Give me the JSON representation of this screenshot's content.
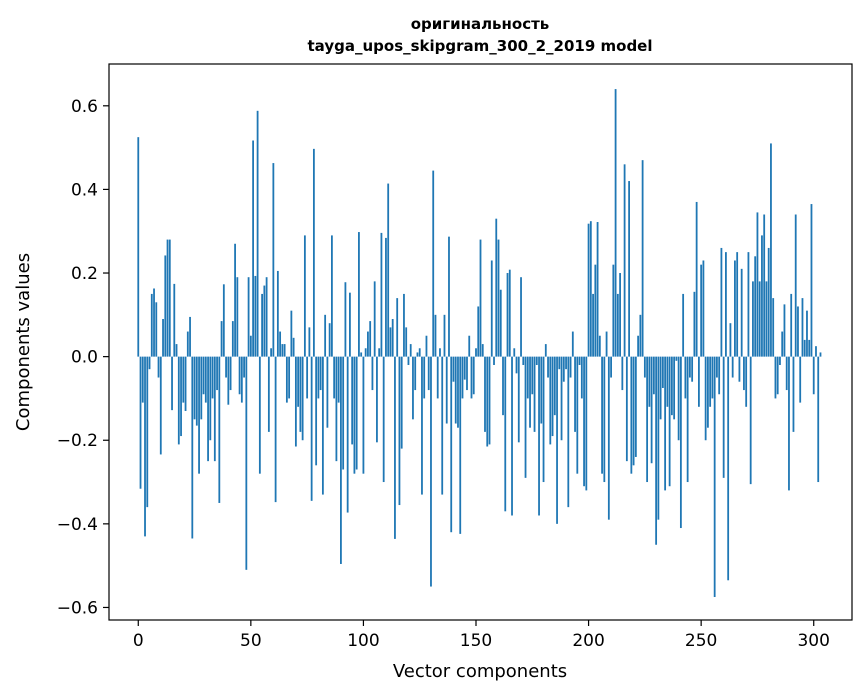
{
  "chart_data": {
    "type": "bar",
    "title": "оригинальность",
    "subtitle": "tayga_upos_skipgram_300_2_2019 model",
    "xlabel": "Vector components",
    "ylabel": "Components values",
    "xlim": [
      -13,
      317
    ],
    "ylim": [
      -0.63,
      0.7
    ],
    "xticks": [
      0,
      50,
      100,
      150,
      200,
      250,
      300
    ],
    "xtick_labels": [
      "0",
      "50",
      "100",
      "150",
      "200",
      "250",
      "300"
    ],
    "yticks": [
      -0.6,
      -0.4,
      -0.2,
      0.0,
      0.2,
      0.4,
      0.6
    ],
    "ytick_labels": [
      "−0.6",
      "−0.4",
      "−0.2",
      "0.0",
      "0.2",
      "0.4",
      "0.6"
    ],
    "bar_color": "#1f77b4",
    "grid": false,
    "values": [
      0.525,
      -0.316,
      -0.11,
      -0.43,
      -0.36,
      -0.03,
      0.15,
      0.163,
      0.13,
      -0.05,
      -0.234,
      0.09,
      0.242,
      0.28,
      0.28,
      -0.128,
      0.174,
      0.03,
      -0.21,
      -0.19,
      -0.11,
      -0.13,
      0.06,
      0.095,
      -0.435,
      -0.15,
      -0.165,
      -0.28,
      -0.15,
      -0.09,
      -0.11,
      -0.25,
      -0.2,
      -0.1,
      -0.25,
      -0.08,
      -0.35,
      0.085,
      0.173,
      -0.05,
      -0.115,
      -0.08,
      0.085,
      0.27,
      0.19,
      -0.09,
      -0.11,
      -0.05,
      -0.51,
      0.19,
      0.05,
      0.517,
      0.193,
      0.588,
      -0.28,
      0.15,
      0.17,
      0.19,
      -0.18,
      0.02,
      0.463,
      -0.348,
      0.205,
      0.06,
      0.03,
      0.03,
      -0.11,
      -0.1,
      0.11,
      0.045,
      -0.215,
      -0.12,
      -0.18,
      -0.2,
      0.29,
      -0.1,
      0.07,
      -0.345,
      0.497,
      -0.26,
      -0.1,
      -0.08,
      -0.33,
      0.1,
      -0.17,
      0.08,
      0.29,
      -0.1,
      -0.25,
      -0.11,
      -0.496,
      -0.27,
      0.178,
      -0.373,
      0.153,
      -0.21,
      -0.28,
      -0.27,
      0.298,
      0.01,
      -0.28,
      0.02,
      0.06,
      0.085,
      -0.08,
      0.18,
      -0.205,
      0.02,
      0.296,
      -0.3,
      0.284,
      0.414,
      0.07,
      0.09,
      -0.436,
      0.14,
      -0.355,
      -0.22,
      0.15,
      0.07,
      -0.02,
      0.03,
      -0.15,
      -0.08,
      0.01,
      0.02,
      -0.33,
      -0.1,
      0.05,
      -0.08,
      -0.55,
      0.445,
      0.1,
      -0.1,
      0.02,
      -0.33,
      0.1,
      -0.16,
      0.287,
      -0.42,
      -0.06,
      -0.16,
      -0.17,
      -0.424,
      -0.1,
      -0.055,
      -0.08,
      0.05,
      -0.1,
      -0.09,
      0.02,
      0.12,
      0.28,
      0.03,
      -0.18,
      -0.215,
      -0.21,
      0.23,
      -0.02,
      0.33,
      0.28,
      0.16,
      -0.14,
      -0.37,
      0.2,
      0.208,
      -0.38,
      0.02,
      -0.04,
      -0.205,
      0.19,
      -0.02,
      -0.29,
      -0.1,
      -0.17,
      -0.09,
      -0.18,
      -0.02,
      -0.38,
      -0.16,
      -0.3,
      0.03,
      -0.05,
      -0.21,
      -0.19,
      -0.14,
      -0.4,
      -0.03,
      -0.2,
      -0.06,
      -0.03,
      -0.36,
      -0.05,
      0.06,
      -0.18,
      -0.28,
      -0.02,
      -0.1,
      -0.31,
      -0.32,
      0.318,
      0.324,
      0.15,
      0.22,
      0.322,
      0.05,
      -0.28,
      -0.3,
      0.06,
      -0.39,
      -0.05,
      0.22,
      0.64,
      0.15,
      0.2,
      -0.08,
      0.46,
      -0.25,
      0.42,
      -0.28,
      -0.26,
      -0.24,
      0.05,
      0.1,
      0.47,
      -0.05,
      -0.3,
      -0.12,
      -0.255,
      -0.09,
      -0.45,
      -0.39,
      -0.15,
      -0.075,
      -0.32,
      -0.12,
      -0.31,
      -0.14,
      -0.15,
      -0.01,
      -0.2,
      -0.41,
      0.15,
      -0.1,
      -0.3,
      -0.05,
      -0.06,
      0.155,
      0.37,
      -0.12,
      0.22,
      0.23,
      -0.2,
      -0.17,
      -0.12,
      -0.1,
      -0.575,
      -0.05,
      -0.09,
      0.26,
      -0.29,
      0.25,
      -0.535,
      0.08,
      -0.05,
      0.23,
      0.25,
      -0.06,
      0.21,
      -0.08,
      -0.12,
      0.25,
      -0.305,
      0.18,
      0.24,
      0.345,
      0.18,
      0.29,
      0.34,
      0.18,
      0.26,
      0.51,
      0.14,
      -0.1,
      -0.09,
      -0.02,
      0.06,
      0.125,
      -0.08,
      -0.32,
      0.15,
      -0.18,
      0.34,
      0.12,
      -0.11,
      0.14,
      0.04,
      0.11,
      0.04,
      0.365,
      -0.09,
      0.025,
      -0.3,
      0.01
    ]
  }
}
